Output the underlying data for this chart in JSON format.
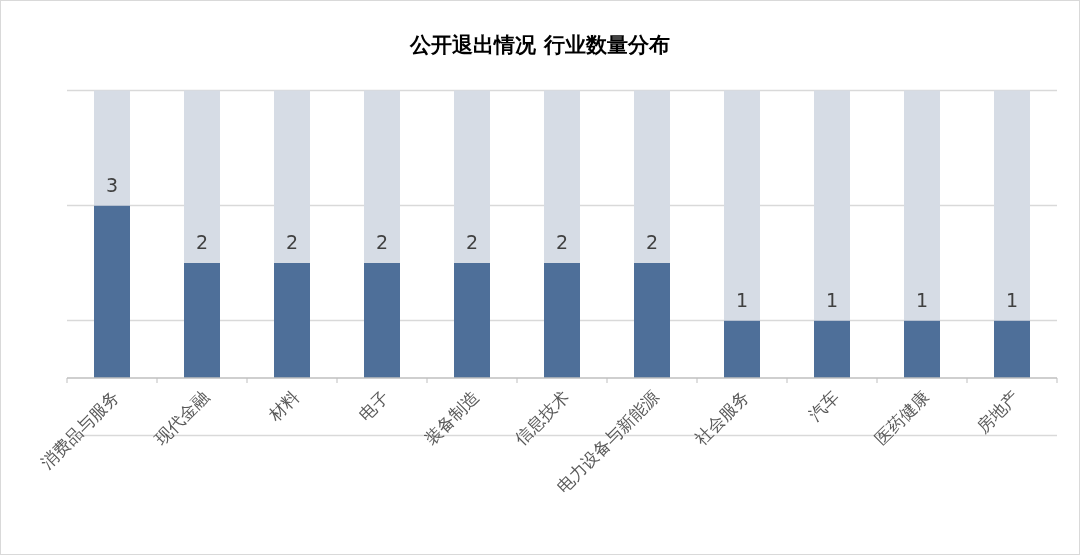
{
  "chart_data": {
    "type": "bar",
    "title": "公开退出情况 行业数量分布",
    "categories": [
      "消费品与服务",
      "现代金融",
      "材料",
      "电子",
      "装备制造",
      "信息技术",
      "电力设备与新能源",
      "社会服务",
      "汽车",
      "医药健康",
      "房地产"
    ],
    "stacked": true,
    "series": [
      {
        "color": "#4e6f99",
        "values": [
          3,
          2,
          2,
          2,
          2,
          2,
          2,
          1,
          1,
          1,
          1
        ],
        "value_labels": [
          "3",
          "2",
          "2",
          "2",
          "2",
          "2",
          "2",
          "1",
          "1",
          "1",
          "1"
        ]
      },
      {
        "color": "#d6dce5",
        "values": [
          2,
          3,
          3,
          3,
          3,
          3,
          3,
          4,
          4,
          4,
          4
        ]
      }
    ],
    "ylim": [
      -1,
      5
    ],
    "yticks": [
      {
        "value": -1,
        "label": null
      },
      {
        "value": 1,
        "label": null
      },
      {
        "value": 3,
        "label": null
      },
      {
        "value": 5,
        "label": null
      }
    ],
    "grid": "y"
  }
}
